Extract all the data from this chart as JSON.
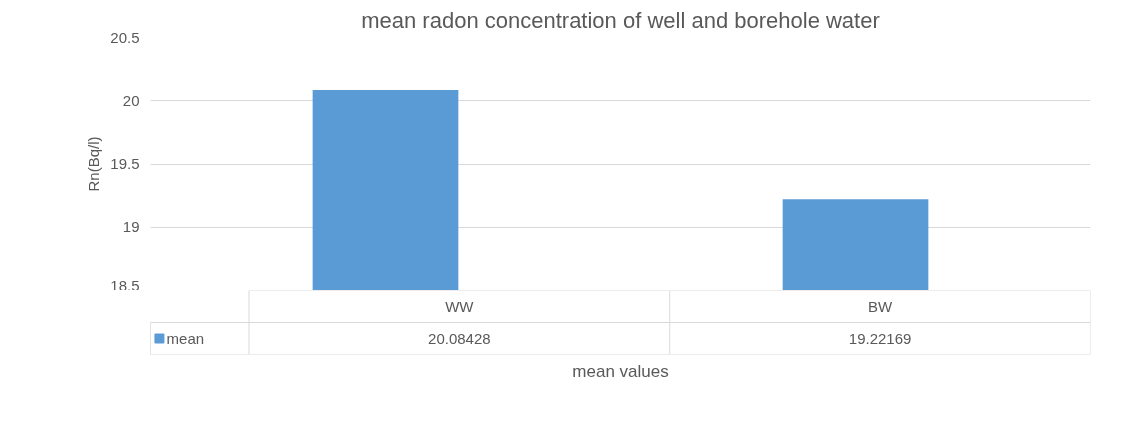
{
  "chart_data": {
    "type": "bar",
    "title": "mean radon concentration of well and borehole water",
    "categories": [
      "WW",
      "BW"
    ],
    "series": [
      {
        "name": "mean",
        "color": "#5b9bd5",
        "values": [
          20.08428,
          19.22169
        ]
      }
    ],
    "ylabel": "Rn(Bq/l)",
    "xlabel": "mean values",
    "ylim": [
      18.5,
      20.5
    ],
    "yticks": [
      18.5,
      19,
      19.5,
      20,
      20.5
    ],
    "grid": "y",
    "legend": "bottom",
    "data_labels": true
  }
}
